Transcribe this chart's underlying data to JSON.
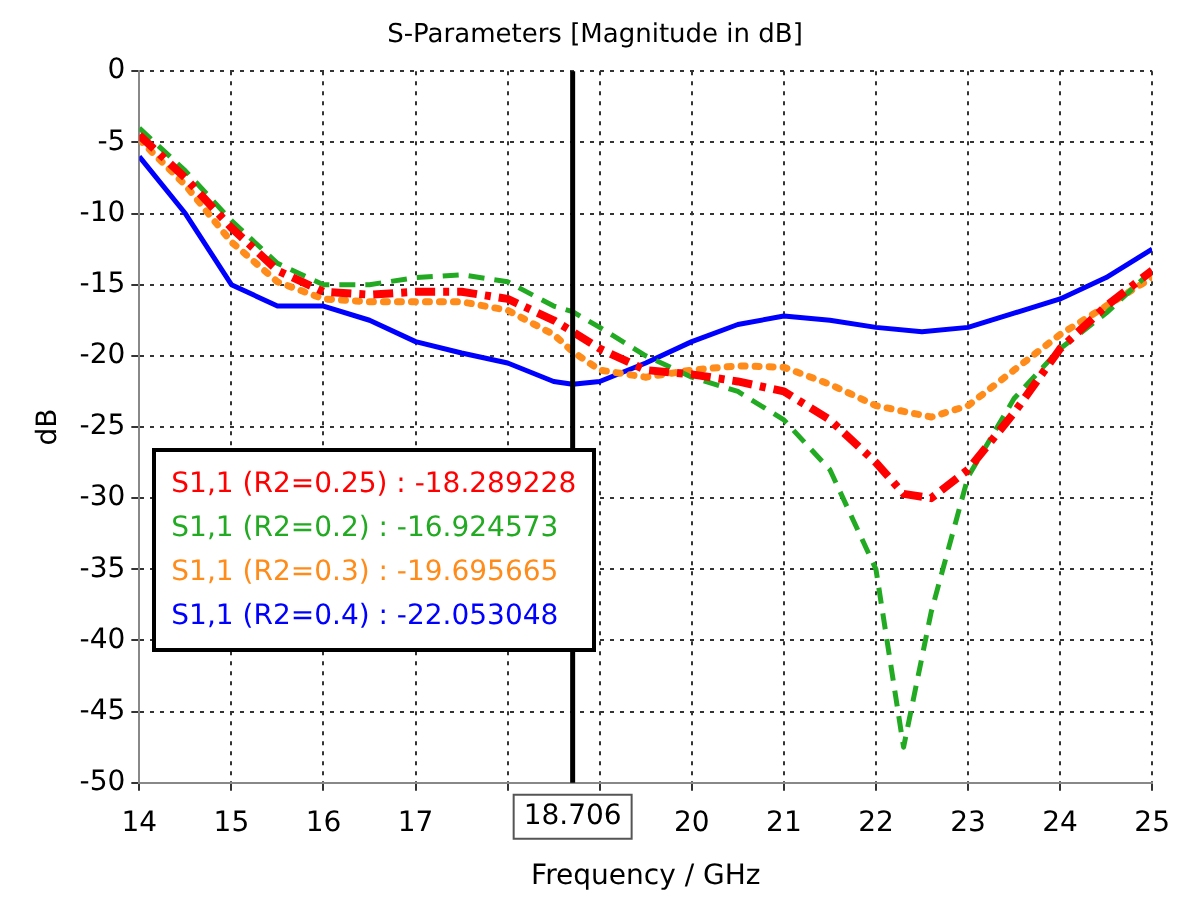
{
  "chart_data": {
    "type": "line",
    "title": "S-Parameters [Magnitude in dB]",
    "xlabel": "Frequency / GHz",
    "ylabel": "dB",
    "xlim": [
      14,
      25
    ],
    "xticks": [
      14,
      15,
      16,
      17,
      {
        "value": 18,
        "label": null
      },
      {
        "value": 19,
        "label": null
      },
      20,
      21,
      22,
      23,
      24,
      25
    ],
    "ylim": [
      -50,
      0
    ],
    "yticks": [
      -50,
      -45,
      -40,
      -35,
      -30,
      -25,
      -20,
      -15,
      -10,
      -5,
      0
    ],
    "grid": true,
    "legend": "left",
    "marker": "none",
    "ref_lines": [
      {
        "axis": "x",
        "value": 18.706,
        "label": "18.706",
        "color": "#000000"
      }
    ],
    "series": [
      {
        "name": "S1,1 (R2=0.25) : -18.289228",
        "color": "#ff0000",
        "line_style": "dashdot",
        "x": [
          14,
          14.5,
          15,
          15.5,
          16,
          16.5,
          17,
          17.5,
          18,
          18.5,
          18.706,
          19,
          19.5,
          20,
          20.5,
          21,
          21.5,
          22,
          22.3,
          22.6,
          23,
          23.5,
          24,
          24.5,
          25
        ],
        "values": [
          -4.5,
          -7.5,
          -11,
          -14,
          -15.5,
          -15.7,
          -15.5,
          -15.5,
          -16,
          -17.5,
          -18.3,
          -19.5,
          -21,
          -21.3,
          -21.8,
          -22.5,
          -24.5,
          -27.5,
          -29.7,
          -30,
          -28,
          -24,
          -19.5,
          -16.5,
          -14
        ]
      },
      {
        "name": "S1,1 (R2=0.2) : -16.924573",
        "color": "#22aa22",
        "line_style": "dashed",
        "x": [
          14,
          14.5,
          15,
          15.5,
          16,
          16.5,
          17,
          17.5,
          18,
          18.5,
          18.706,
          19,
          19.5,
          20,
          20.5,
          21,
          21.5,
          22,
          22.3,
          22.6,
          23,
          23.5,
          24,
          24.5,
          25
        ],
        "values": [
          -4,
          -7,
          -10.5,
          -13.5,
          -15,
          -15,
          -14.5,
          -14.3,
          -14.8,
          -16.5,
          -16.9,
          -18,
          -20,
          -21.5,
          -22.5,
          -24.5,
          -28,
          -35,
          -47.5,
          -38,
          -28.5,
          -23,
          -19.5,
          -17,
          -14
        ]
      },
      {
        "name": "S1,1 (R2=0.3) : -19.695665",
        "color": "#ff8c1a",
        "line_style": "dotted",
        "x": [
          14,
          14.5,
          15,
          15.5,
          16,
          16.5,
          17,
          17.5,
          18,
          18.5,
          18.706,
          19,
          19.5,
          20,
          20.5,
          21,
          21.5,
          22,
          22.6,
          23,
          23.5,
          24,
          24.5,
          25
        ],
        "values": [
          -4.8,
          -8,
          -12,
          -14.8,
          -16,
          -16.2,
          -16.2,
          -16.2,
          -16.8,
          -18.5,
          -19.7,
          -21,
          -21.5,
          -21,
          -20.7,
          -20.8,
          -22,
          -23.5,
          -24.3,
          -23.5,
          -21,
          -18.5,
          -16.5,
          -14.5
        ]
      },
      {
        "name": "S1,1 (R2=0.4) : -22.053048",
        "color": "#0000ff",
        "line_style": "solid",
        "x": [
          14,
          14.5,
          15,
          15.5,
          16,
          16.5,
          17,
          17.5,
          18,
          18.5,
          18.706,
          19,
          19.5,
          20,
          20.5,
          21,
          21.5,
          22,
          22.5,
          23,
          23.5,
          24,
          24.5,
          25
        ],
        "values": [
          -6,
          -10,
          -15,
          -16.5,
          -16.5,
          -17.5,
          -19,
          -19.8,
          -20.5,
          -21.8,
          -22,
          -21.8,
          -20.5,
          -19,
          -17.8,
          -17.2,
          -17.5,
          -18,
          -18.3,
          -18,
          -17,
          -16,
          -14.5,
          -12.5
        ]
      }
    ]
  }
}
